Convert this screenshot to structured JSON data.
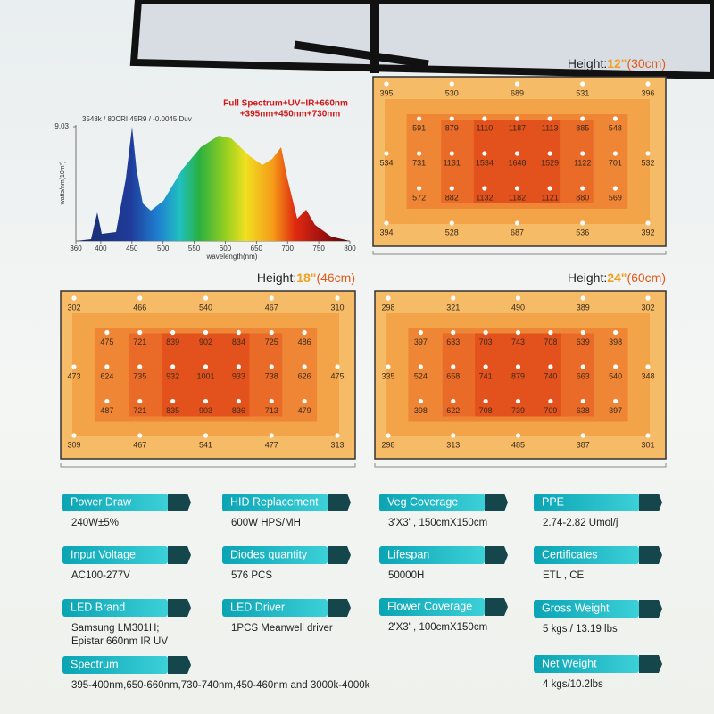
{
  "spectrum": {
    "title": "3548k / 80CRI 45R9 / -0.0045 Duv",
    "annotation": [
      "Full Spectrum+UV+IR+660nm",
      "+395nm+450nm+730nm"
    ],
    "ylabel": "watts/nm(10m²)",
    "xlabel": "wavelength(nm)",
    "xlim": [
      360,
      800
    ],
    "xticks": [
      360,
      400,
      450,
      500,
      550,
      600,
      650,
      700,
      750,
      800
    ],
    "ylim": [
      0,
      9.03
    ],
    "yticks": [
      9.03
    ]
  },
  "par_maps": [
    {
      "prefix": "Height:",
      "height": "12\"",
      "metric": "(30cm)",
      "rows": [
        [
          395,
          530,
          689,
          531,
          396
        ],
        [
          591,
          879,
          1110,
          1187,
          1113,
          885,
          548
        ],
        [
          534,
          731,
          1131,
          1534,
          1648,
          1529,
          1122,
          701,
          532
        ],
        [
          572,
          882,
          1132,
          1182,
          1121,
          880,
          569
        ],
        [
          394,
          528,
          687,
          536,
          392
        ]
      ]
    },
    {
      "prefix": "Height:",
      "height": "18\"",
      "metric": "(46cm)",
      "rows": [
        [
          302,
          466,
          540,
          467,
          310
        ],
        [
          475,
          721,
          839,
          902,
          834,
          725,
          486
        ],
        [
          473,
          624,
          735,
          932,
          1001,
          933,
          738,
          626,
          475
        ],
        [
          487,
          721,
          835,
          903,
          836,
          713,
          479
        ],
        [
          309,
          467,
          541,
          477,
          313
        ]
      ]
    },
    {
      "prefix": "Height:",
      "height": "24\"",
      "metric": "(60cm)",
      "rows": [
        [
          298,
          321,
          490,
          389,
          302
        ],
        [
          397,
          633,
          703,
          743,
          708,
          639,
          398
        ],
        [
          335,
          524,
          658,
          741,
          879,
          740,
          663,
          540,
          348
        ],
        [
          398,
          622,
          708,
          739,
          709,
          638,
          397
        ],
        [
          298,
          313,
          485,
          387,
          301
        ]
      ]
    }
  ],
  "specs": [
    [
      {
        "label": "Power Draw",
        "value": [
          "240W±5%"
        ]
      },
      {
        "label": "Input Voltage",
        "value": [
          "AC100-277V"
        ]
      },
      {
        "label": "LED Brand",
        "value": [
          "Samsung LM301H;",
          "Epistar 660nm IR UV"
        ]
      },
      {
        "label": "Spectrum",
        "value": [
          "395-400nm,650-660nm,730-740nm,450-460nm and 3000k-4000k"
        ]
      }
    ],
    [
      {
        "label": "HID Replacement",
        "value": [
          "600W HPS/MH"
        ]
      },
      {
        "label": "Diodes quantity",
        "value": [
          "576 PCS"
        ]
      },
      {
        "label": "LED Driver",
        "value": [
          "1PCS Meanwell driver"
        ]
      }
    ],
    [
      {
        "label": "Veg Coverage",
        "value": [
          "3'X3' , 150cmX150cm"
        ]
      },
      {
        "label": "Lifespan",
        "value": [
          "50000H"
        ]
      },
      {
        "label": "Flower Coverage",
        "value": [
          "2'X3' , 100cmX150cm"
        ]
      }
    ],
    [
      {
        "label": "PPE",
        "value": [
          "2.74-2.82 Umol/j"
        ]
      },
      {
        "label": "Certificates",
        "value": [
          "ETL , CE"
        ]
      },
      {
        "label": "Gross Weight",
        "value": [
          "5 kgs / 13.19 lbs"
        ]
      },
      {
        "label": "Net Weight",
        "value": [
          "4 kgs/10.2lbs"
        ]
      }
    ]
  ]
}
